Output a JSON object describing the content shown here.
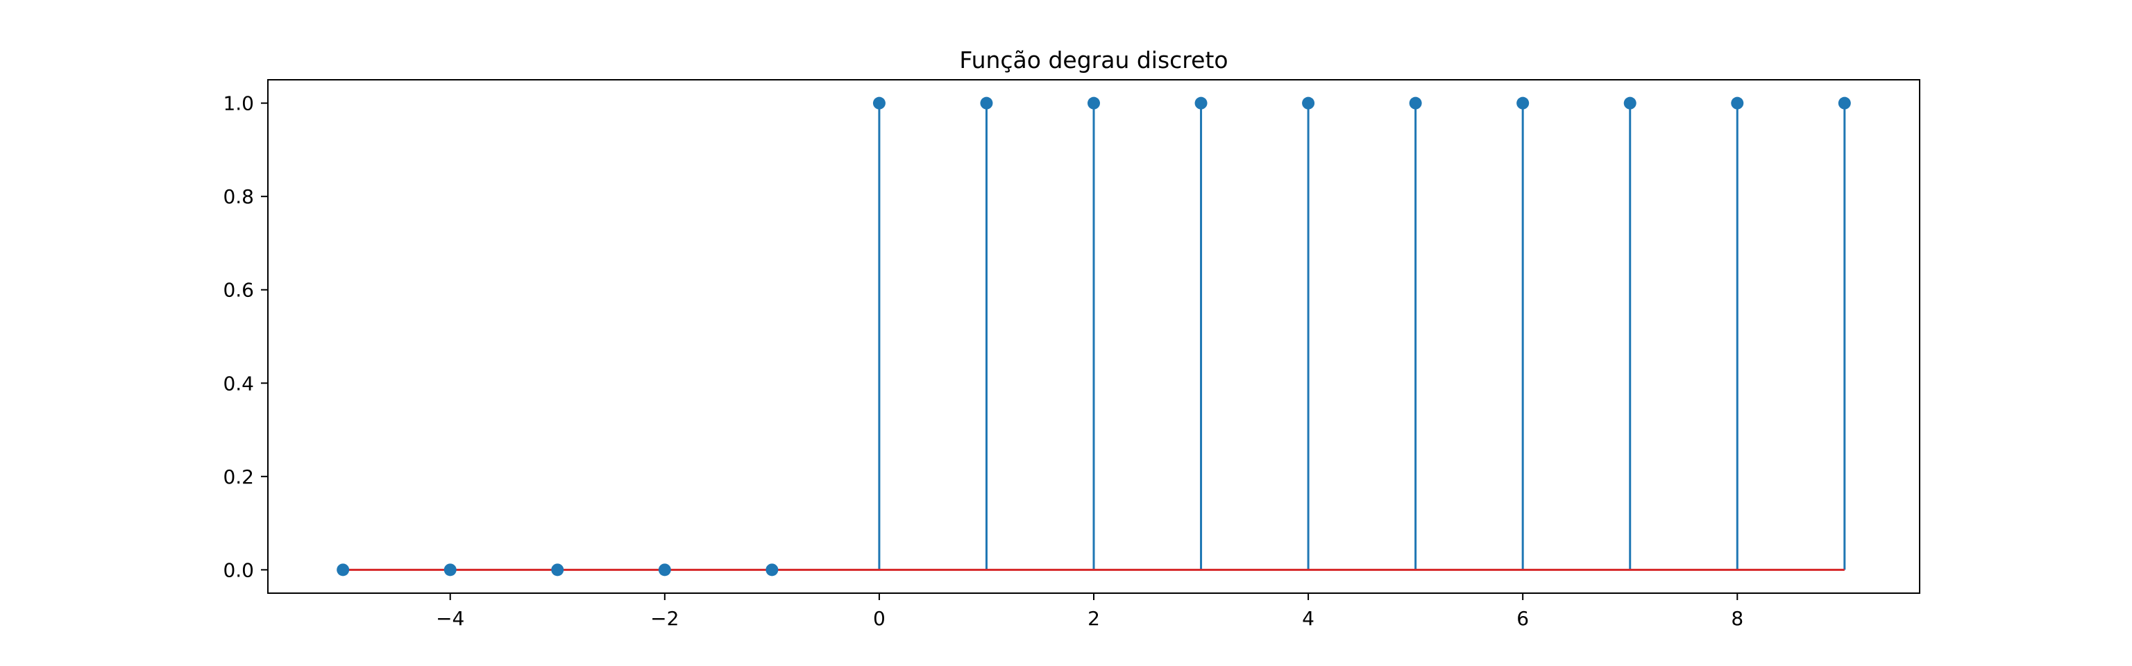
{
  "chart_data": {
    "type": "stem",
    "title": "Função degrau discreto",
    "xlabel": "",
    "ylabel": "",
    "x": [
      -5,
      -4,
      -3,
      -2,
      -1,
      0,
      1,
      2,
      3,
      4,
      5,
      6,
      7,
      8,
      9
    ],
    "y": [
      0,
      0,
      0,
      0,
      0,
      1,
      1,
      1,
      1,
      1,
      1,
      1,
      1,
      1,
      1
    ],
    "xlim": [
      -5.7,
      9.7
    ],
    "ylim": [
      -0.05,
      1.05
    ],
    "x_ticks": [
      -4,
      -2,
      0,
      2,
      4,
      6,
      8
    ],
    "x_tick_labels": [
      "−4",
      "−2",
      "0",
      "2",
      "4",
      "6",
      "8"
    ],
    "y_ticks": [
      0.0,
      0.2,
      0.4,
      0.6,
      0.8,
      1.0
    ],
    "y_tick_labels": [
      "0.0",
      "0.2",
      "0.4",
      "0.6",
      "0.8",
      "1.0"
    ],
    "grid": false,
    "colors": {
      "stem": "#1f77b4",
      "marker": "#1f77b4",
      "baseline": "#d62728",
      "axes": "#000000"
    }
  }
}
